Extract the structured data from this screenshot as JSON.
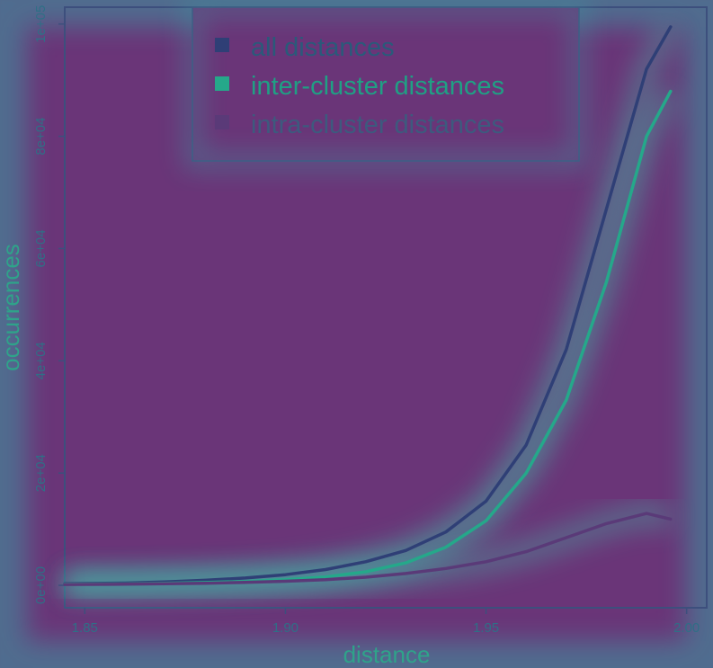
{
  "chart_data": {
    "type": "line",
    "xlabel": "distance",
    "ylabel": "occurrences",
    "xlim": [
      1.845,
      2.005
    ],
    "ylim": [
      -4000,
      103000
    ],
    "xticks": [
      1.85,
      1.9,
      1.95,
      2.0
    ],
    "xtick_labels": [
      "1.85",
      "1.90",
      "1.95",
      "2.00"
    ],
    "yticks": [
      0,
      20000,
      40000,
      60000,
      80000,
      100000
    ],
    "ytick_labels": [
      "0e+00",
      "2e+04",
      "4e+04",
      "6e+04",
      "8e+04",
      "1e+05"
    ],
    "legend_position": "top",
    "grid": false,
    "x": [
      1.845,
      1.86,
      1.87,
      1.88,
      1.89,
      1.9,
      1.91,
      1.92,
      1.93,
      1.94,
      1.95,
      1.96,
      1.97,
      1.98,
      1.99,
      1.996
    ],
    "series": [
      {
        "name": "all distances",
        "color": "#2f3f76",
        "values": [
          300,
          400,
          600,
          900,
          1300,
          1900,
          2800,
          4200,
          6200,
          9500,
          15000,
          25000,
          42000,
          67000,
          92000,
          99500
        ]
      },
      {
        "name": "inter-cluster distances",
        "color": "#25a88a",
        "values": [
          200,
          250,
          350,
          500,
          700,
          1000,
          1500,
          2400,
          4000,
          6800,
          11500,
          20000,
          33000,
          54000,
          80000,
          88000
        ]
      },
      {
        "name": "intra-cluster distances",
        "color": "#5a3a78",
        "values": [
          150,
          200,
          280,
          380,
          520,
          720,
          1000,
          1450,
          2100,
          3000,
          4200,
          6000,
          8500,
          11000,
          12800,
          11800
        ]
      }
    ]
  }
}
